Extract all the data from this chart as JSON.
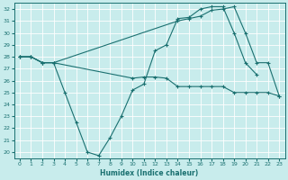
{
  "xlabel": "Humidex (Indice chaleur)",
  "bg_color": "#c8ecec",
  "line_color": "#1a7070",
  "grid_color": "#ffffff",
  "ylim": [
    19.5,
    32.5
  ],
  "xlim": [
    -0.5,
    23.5
  ],
  "yticks": [
    20,
    21,
    22,
    23,
    24,
    25,
    26,
    27,
    28,
    29,
    30,
    31,
    32
  ],
  "xticks": [
    0,
    1,
    2,
    3,
    4,
    5,
    6,
    7,
    8,
    9,
    10,
    11,
    12,
    13,
    14,
    15,
    16,
    17,
    18,
    19,
    20,
    21,
    22,
    23
  ],
  "line1_x": [
    0,
    1,
    2,
    3,
    4,
    5,
    6,
    7,
    8,
    9,
    10,
    11,
    12,
    13,
    14,
    15,
    16,
    17,
    18,
    19,
    20,
    21
  ],
  "line1_y": [
    28,
    28,
    27.5,
    27.5,
    25,
    22.5,
    20,
    19.7,
    21.2,
    23,
    25.2,
    25.7,
    28.5,
    29,
    31.2,
    31.3,
    32,
    32.2,
    32.2,
    30,
    27.5,
    26.5
  ],
  "line2_x": [
    0,
    1,
    2,
    3,
    14,
    15,
    16,
    17,
    18,
    19,
    20,
    21,
    22,
    23
  ],
  "line2_y": [
    28,
    28,
    27.5,
    27.5,
    31.0,
    31.2,
    31.4,
    31.9,
    32.0,
    32.2,
    30.0,
    27.5,
    27.5,
    24.7
  ],
  "line3_x": [
    0,
    1,
    2,
    3,
    10,
    11,
    12,
    13,
    14,
    15,
    16,
    17,
    18,
    19,
    20,
    21,
    22,
    23
  ],
  "line3_y": [
    28,
    28,
    27.5,
    27.5,
    26.2,
    26.3,
    26.3,
    26.2,
    25.5,
    25.5,
    25.5,
    25.5,
    25.5,
    25.0,
    25.0,
    25.0,
    25.0,
    24.7
  ]
}
